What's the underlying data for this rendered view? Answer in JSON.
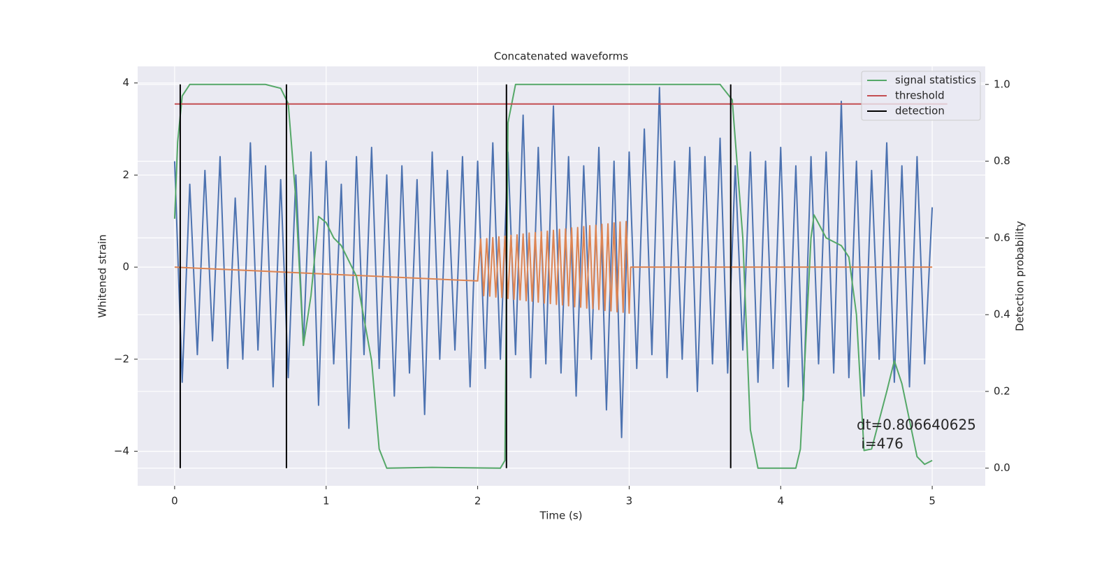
{
  "chart_data": {
    "type": "line",
    "title": "Concatenated waveforms",
    "xlabel": "Time (s)",
    "ylabel": "Whitened strain",
    "y2label": "Detection probability",
    "xlim": [
      -0.244,
      5.35
    ],
    "ylim": [
      -4.75,
      4.36
    ],
    "y2lim": [
      -0.046,
      1.047
    ],
    "xticks": [
      0,
      1,
      2,
      3,
      4,
      5
    ],
    "yticks": [
      {
        "value": -4,
        "label": "−4"
      },
      {
        "value": -2,
        "label": "−2"
      },
      0,
      2,
      4
    ],
    "y2ticks": [
      {
        "value": 0,
        "label": "0.0"
      },
      {
        "value": 0.2,
        "label": "0.2"
      },
      {
        "value": 0.4,
        "label": "0.4"
      },
      {
        "value": 0.6,
        "label": "0.6"
      },
      {
        "value": 0.8,
        "label": "0.8"
      },
      {
        "value": 1,
        "label": "1.0"
      }
    ],
    "grid": true,
    "legend": "upper right",
    "annotation": [
      "dt=0.806640625",
      " i=476"
    ],
    "series": [
      {
        "color": "#4c72b0",
        "axis": "y",
        "x": [
          0,
          0.05,
          0.1,
          0.15,
          0.2,
          0.25,
          0.3,
          0.35,
          0.4,
          0.45,
          0.5,
          0.55,
          0.6,
          0.65,
          0.7,
          0.75,
          0.8,
          0.85,
          0.9,
          0.95,
          1,
          1.05,
          1.1,
          1.15,
          1.2,
          1.25,
          1.3,
          1.35,
          1.4,
          1.45,
          1.5,
          1.55,
          1.6,
          1.65,
          1.7,
          1.75,
          1.8,
          1.85,
          1.9,
          1.95,
          2,
          2.05,
          2.1,
          2.15,
          2.2,
          2.25,
          2.3,
          2.35,
          2.4,
          2.45,
          2.5,
          2.55,
          2.6,
          2.65,
          2.7,
          2.75,
          2.8,
          2.85,
          2.9,
          2.95,
          3,
          3.05,
          3.1,
          3.15,
          3.2,
          3.25,
          3.3,
          3.35,
          3.4,
          3.45,
          3.5,
          3.55,
          3.6,
          3.65,
          3.7,
          3.75,
          3.8,
          3.85,
          3.9,
          3.95,
          4,
          4.05,
          4.1,
          4.15,
          4.2,
          4.25,
          4.3,
          4.35,
          4.4,
          4.45,
          4.5,
          4.55,
          4.6,
          4.65,
          4.7,
          4.75,
          4.8,
          4.85,
          4.9,
          4.95,
          5
        ],
        "values": [
          2.3,
          -2.5,
          1.8,
          -1.9,
          2.1,
          -1.6,
          2.4,
          -2.2,
          1.5,
          -2.0,
          2.7,
          -1.8,
          2.2,
          -2.6,
          1.9,
          -2.4,
          2.0,
          -1.7,
          2.5,
          -3.0,
          2.3,
          -2.1,
          1.8,
          -3.5,
          2.4,
          -1.9,
          2.6,
          -2.2,
          2.0,
          -2.8,
          2.2,
          -2.3,
          1.9,
          -3.2,
          2.5,
          -2.0,
          2.1,
          -1.8,
          2.4,
          -2.6,
          2.3,
          -2.2,
          2.7,
          -2.0,
          2.5,
          -1.9,
          3.3,
          -2.4,
          2.6,
          -2.1,
          3.5,
          -2.3,
          2.4,
          -2.8,
          2.2,
          -2.0,
          2.6,
          -3.1,
          2.3,
          -3.7,
          2.5,
          -2.2,
          3.0,
          -1.9,
          3.9,
          -2.4,
          2.3,
          -2.0,
          2.6,
          -2.7,
          2.4,
          -2.1,
          2.8,
          -2.3,
          2.2,
          -1.8,
          2.5,
          -2.5,
          2.3,
          -2.2,
          2.6,
          -2.6,
          2.2,
          -2.9,
          2.4,
          -2.1,
          2.5,
          -2.3,
          3.6,
          -2.4,
          2.3,
          -2.8,
          2.1,
          -2.0,
          2.7,
          -2.5,
          2.2,
          -2.6,
          2.4,
          -2.1,
          1.3
        ]
      },
      {
        "color": "#dd8452",
        "axis": "y",
        "x": [
          0,
          2,
          2.02,
          2.04,
          2.06,
          2.08,
          2.1,
          2.12,
          2.14,
          2.16,
          2.18,
          2.2,
          2.22,
          2.24,
          2.26,
          2.28,
          2.3,
          2.32,
          2.34,
          2.36,
          2.38,
          2.4,
          2.42,
          2.44,
          2.46,
          2.48,
          2.5,
          2.52,
          2.54,
          2.56,
          2.58,
          2.6,
          2.62,
          2.64,
          2.66,
          2.68,
          2.7,
          2.72,
          2.74,
          2.76,
          2.78,
          2.8,
          2.82,
          2.84,
          2.86,
          2.88,
          2.9,
          2.92,
          2.94,
          2.96,
          2.98,
          3,
          3.01,
          5
        ],
        "values": [
          0,
          -0.3,
          0.61,
          -0.62,
          0.62,
          -0.63,
          0.64,
          -0.65,
          0.66,
          -0.66,
          0.67,
          -0.68,
          0.69,
          -0.7,
          0.7,
          -0.71,
          0.72,
          -0.73,
          0.74,
          -0.74,
          0.75,
          -0.76,
          0.77,
          -0.78,
          0.78,
          -0.79,
          0.8,
          -0.81,
          0.82,
          -0.82,
          0.83,
          -0.84,
          0.85,
          -0.86,
          0.86,
          -0.87,
          0.88,
          -0.89,
          0.9,
          -0.9,
          0.91,
          -0.92,
          0.93,
          -0.94,
          0.94,
          -0.95,
          0.96,
          -0.97,
          0.98,
          -0.98,
          0.99,
          -1.0,
          0,
          0
        ]
      },
      {
        "name": "signal statistics",
        "color": "#55a868",
        "axis": "y2",
        "x": [
          0,
          0.02,
          0.05,
          0.1,
          0.6,
          0.7,
          0.75,
          0.8,
          0.85,
          0.9,
          0.95,
          1.0,
          1.05,
          1.1,
          1.2,
          1.3,
          1.35,
          1.4,
          1.7,
          2.15,
          2.18,
          2.2,
          2.25,
          3.6,
          3.68,
          3.75,
          3.8,
          3.85,
          4.1,
          4.13,
          4.2,
          4.22,
          4.3,
          4.4,
          4.45,
          4.5,
          4.55,
          4.6,
          4.7,
          4.75,
          4.8,
          4.9,
          4.95,
          5.0
        ],
        "values": [
          0.65,
          0.85,
          0.97,
          1.0,
          1.0,
          0.99,
          0.95,
          0.7,
          0.32,
          0.45,
          0.656,
          0.64,
          0.6,
          0.58,
          0.5,
          0.28,
          0.05,
          0.0,
          0.002,
          0.0,
          0.02,
          0.9,
          1.0,
          1.0,
          0.96,
          0.6,
          0.1,
          0.0,
          0.0,
          0.05,
          0.6,
          0.66,
          0.6,
          0.58,
          0.55,
          0.4,
          0.046,
          0.05,
          0.2,
          0.28,
          0.22,
          0.03,
          0.01,
          0.02
        ]
      },
      {
        "name": "threshold",
        "color": "#c44e52",
        "axis": "y2",
        "x": [
          0,
          5.1
        ],
        "values": [
          0.949,
          0.949
        ]
      },
      {
        "name": "detection",
        "color": "#000000",
        "axis": "y2",
        "style": "vlines",
        "x": [
          0.037,
          0.738,
          2.19,
          3.67
        ]
      }
    ]
  }
}
